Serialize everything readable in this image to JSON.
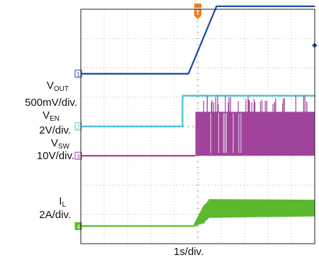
{
  "chart_data": {
    "type": "line",
    "title": "",
    "xlabel": "1s/div.",
    "ylabel": "",
    "grid": true,
    "grid_divisions": {
      "x": 10,
      "y": 8
    },
    "trigger_marker_label": "T",
    "x_unit": "s",
    "x_range": [
      0,
      10
    ],
    "channels": [
      {
        "id": "1",
        "label_main": "V",
        "label_sub": "OUT",
        "scale_label": "500mV/div.",
        "color": "#1f4fa8",
        "marker": "1",
        "ground_div": 2.2,
        "points": [
          [
            0,
            0
          ],
          [
            4.6,
            0
          ],
          [
            5.8,
            2.3
          ],
          [
            10,
            2.3
          ]
        ]
      },
      {
        "id": "2",
        "label_main": "V",
        "label_sub": "EN",
        "scale_label": "2V/div.",
        "color": "#4ec0d8",
        "marker": "2",
        "ground_div": 4.0,
        "points": [
          [
            0,
            0
          ],
          [
            4.35,
            0
          ],
          [
            4.35,
            1.05
          ],
          [
            10,
            1.05
          ]
        ]
      },
      {
        "id": "3",
        "label_main": "V",
        "label_sub": "SW",
        "scale_label": "10V/div.",
        "color": "#a0439a",
        "marker": "3",
        "ground_div": 5.0,
        "points": [
          [
            0,
            0
          ],
          [
            4.9,
            0
          ],
          [
            4.9,
            1.5
          ],
          [
            10,
            1.5
          ]
        ]
      },
      {
        "id": "4",
        "label_main": "I",
        "label_sub": "L",
        "scale_label": "2A/div.",
        "color": "#5cb82e",
        "marker": "4",
        "ground_div": 7.4,
        "points": [
          [
            0,
            0
          ],
          [
            4.8,
            0
          ],
          [
            5.5,
            0.6
          ],
          [
            10,
            0.6
          ]
        ],
        "ripple_div": 0.6
      }
    ],
    "side_marker": "◆"
  }
}
